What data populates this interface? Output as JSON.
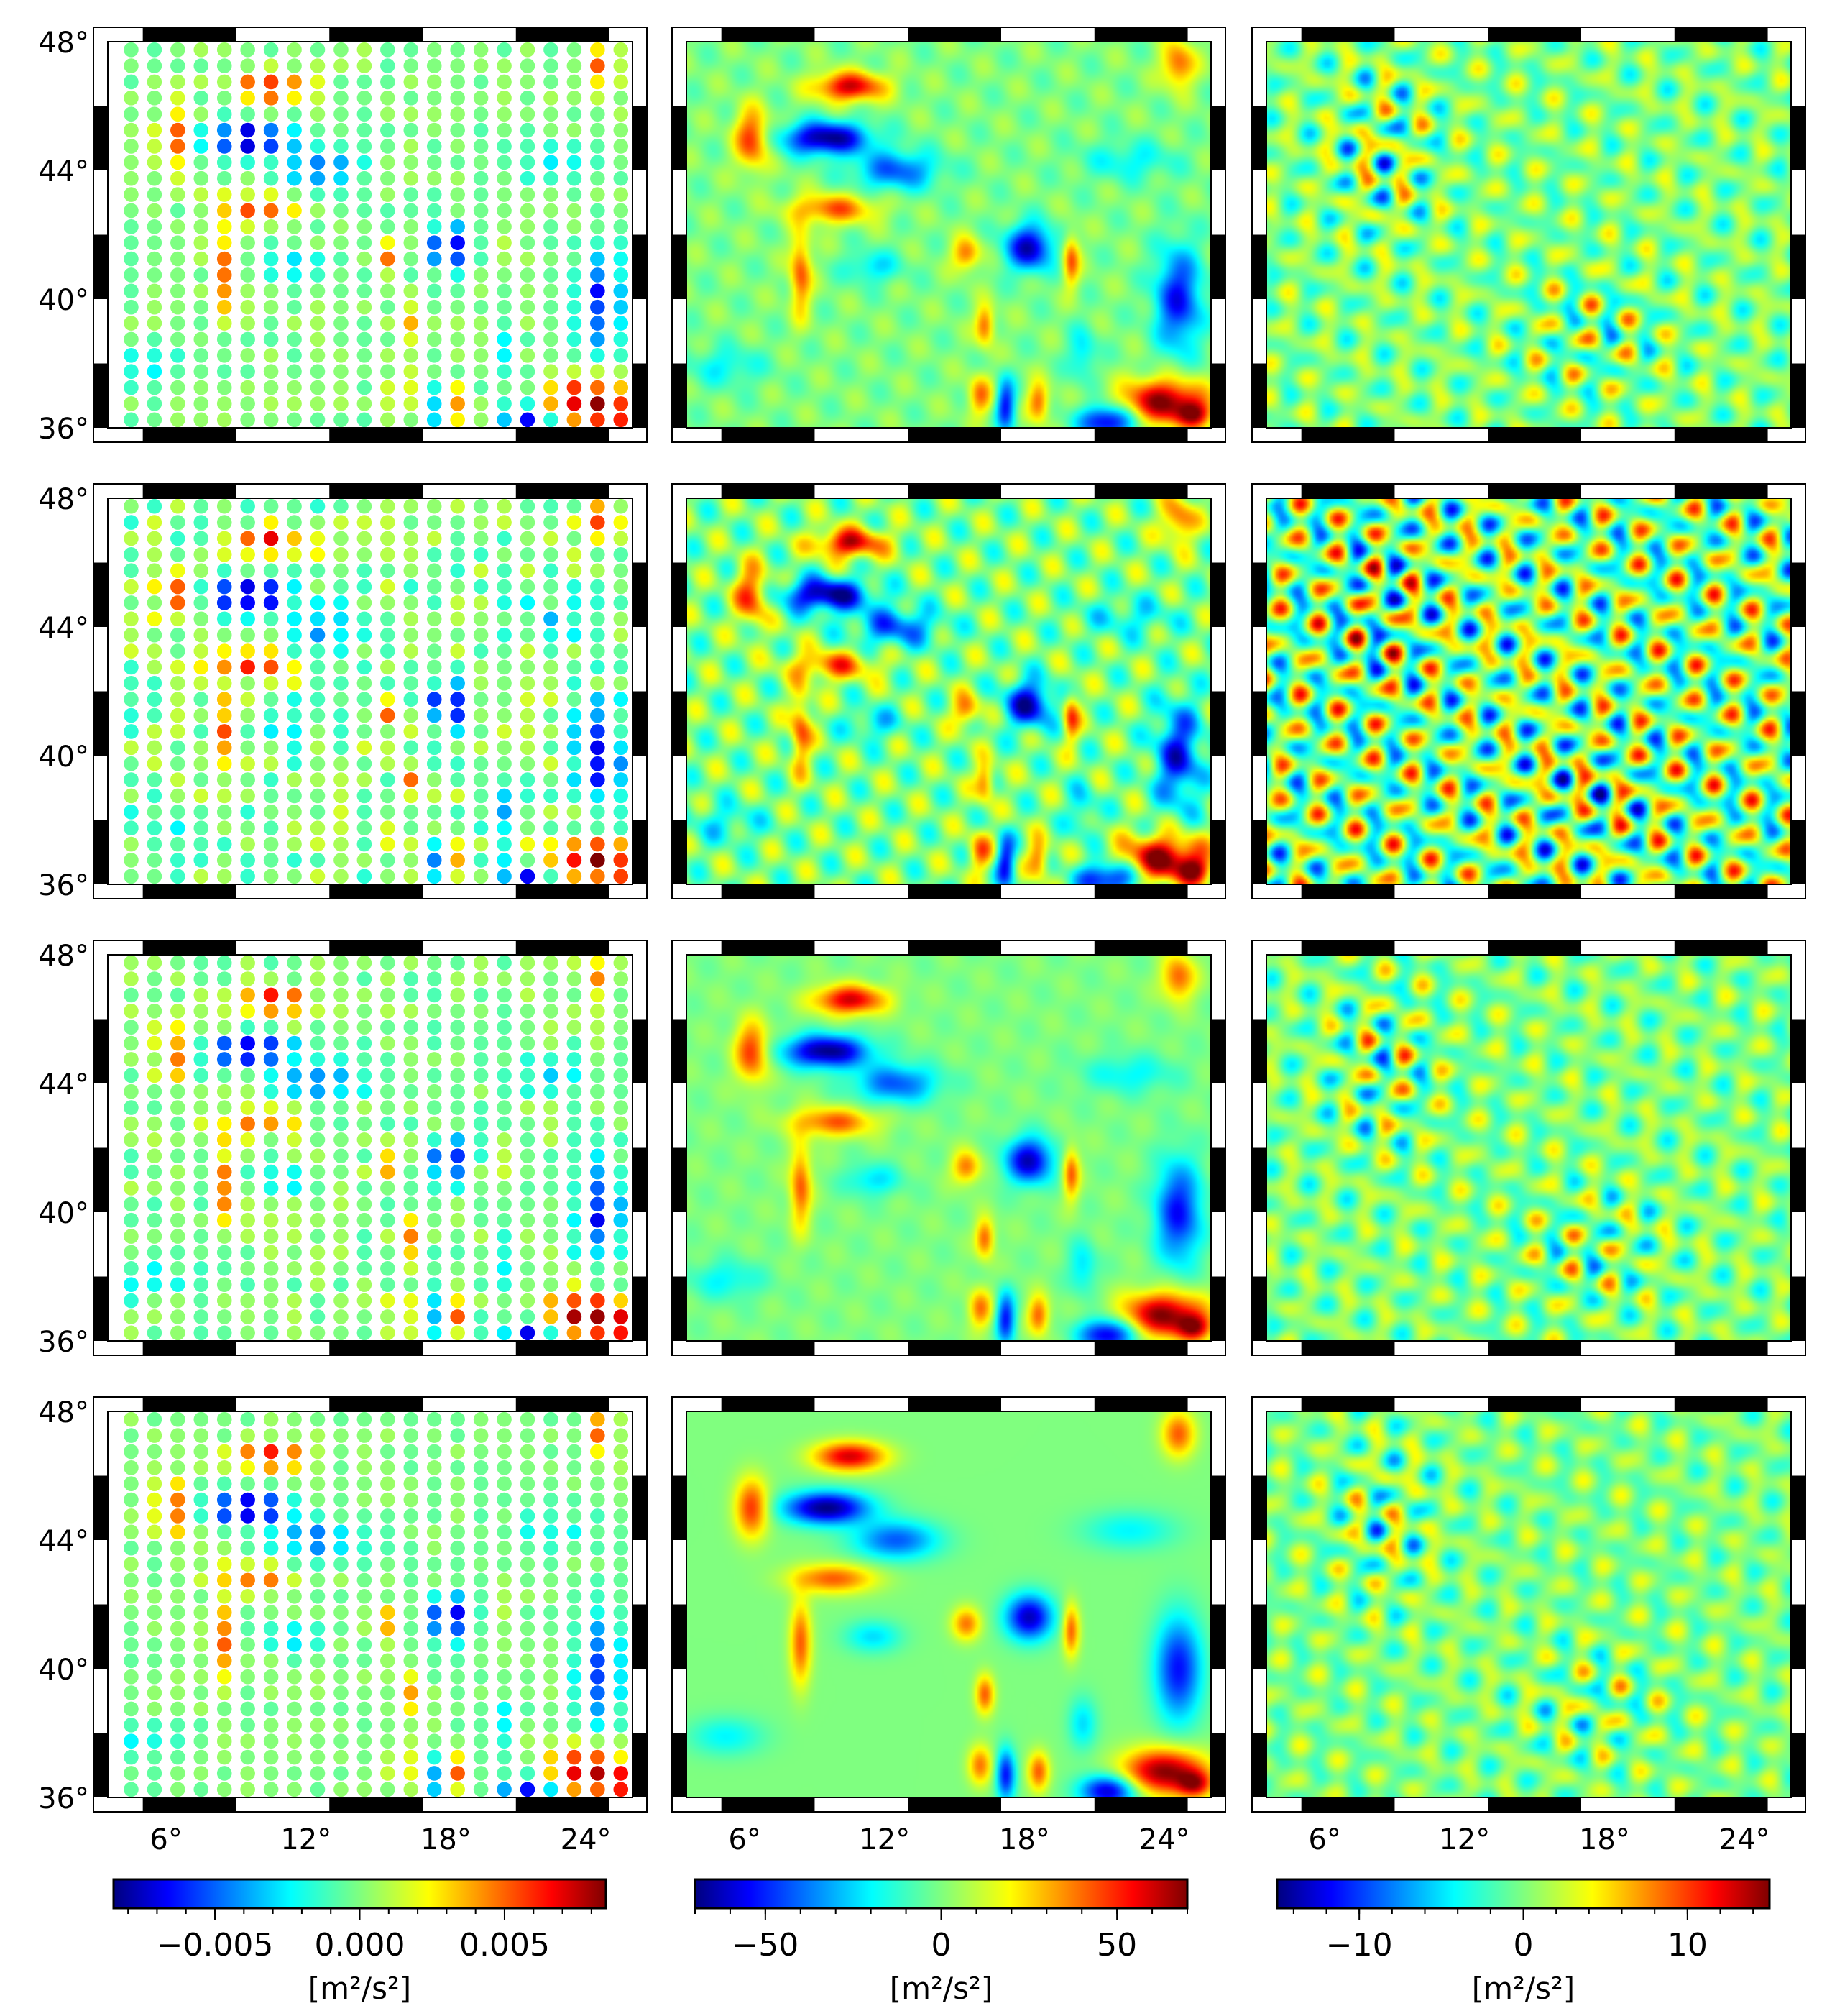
{
  "figure": {
    "columns": [
      "observed-points",
      "smoothed-field",
      "residual-field"
    ]
  },
  "chart_data": {
    "type": "heatmap",
    "grid": "4 rows x 3 columns of map panels",
    "x_axis": {
      "ticks": [
        6,
        12,
        18,
        24
      ],
      "tick_labels": [
        "6°",
        "12°",
        "18°",
        "24°"
      ],
      "range": [
        3.5,
        26.0
      ]
    },
    "y_axis": {
      "ticks": [
        36,
        40,
        44,
        48
      ],
      "tick_labels": [
        "36°",
        "40°",
        "44°",
        "48°"
      ],
      "range": [
        36,
        48
      ]
    },
    "frame_style": "alternating black and white map border",
    "colormap": "jet",
    "colorbars": [
      {
        "column": 1,
        "range": [
          -0.0085,
          0.0085
        ],
        "ticks": [
          -0.005,
          0,
          0.005
        ],
        "tick_labels": [
          "−0.005",
          "0.000",
          "0.005"
        ],
        "unit": "[m²/s²]"
      },
      {
        "column": 2,
        "range": [
          -70,
          70
        ],
        "ticks": [
          -50,
          0,
          50
        ],
        "tick_labels": [
          "−50",
          "0",
          "50"
        ],
        "unit": "[m²/s²]"
      },
      {
        "column": 3,
        "range": [
          -15,
          15
        ],
        "ticks": [
          -10,
          0,
          10
        ],
        "tick_labels": [
          "−10",
          "0",
          "10"
        ],
        "unit": "[m²/s²]"
      }
    ],
    "point_grid": {
      "lon_start": 4.5,
      "lon_step": 1.0,
      "lat_start": 36.25,
      "lat_step": 0.5
    },
    "anomalies": [
      {
        "lon": 10.5,
        "lat": 46.6,
        "sigma_lon": 1.5,
        "sigma_lat": 0.45,
        "amp": 0.8
      },
      {
        "lon": 6.3,
        "lat": 45.0,
        "sigma_lon": 0.7,
        "sigma_lat": 0.9,
        "amp": 0.65
      },
      {
        "lon": 9.5,
        "lat": 45.0,
        "sigma_lon": 1.8,
        "sigma_lat": 0.5,
        "amp": -0.95
      },
      {
        "lon": 12.5,
        "lat": 44.0,
        "sigma_lon": 1.8,
        "sigma_lat": 0.6,
        "amp": -0.55
      },
      {
        "lon": 9.8,
        "lat": 42.8,
        "sigma_lon": 1.8,
        "sigma_lat": 0.45,
        "amp": 0.55
      },
      {
        "lon": 8.4,
        "lat": 40.8,
        "sigma_lon": 0.45,
        "sigma_lat": 1.3,
        "amp": 0.55
      },
      {
        "lon": 11.5,
        "lat": 41.0,
        "sigma_lon": 1.2,
        "sigma_lat": 0.5,
        "amp": -0.3
      },
      {
        "lon": 18.2,
        "lat": 41.6,
        "sigma_lon": 1.0,
        "sigma_lat": 0.7,
        "amp": -0.85
      },
      {
        "lon": 15.5,
        "lat": 41.4,
        "sigma_lon": 0.6,
        "sigma_lat": 0.5,
        "amp": 0.5
      },
      {
        "lon": 20.0,
        "lat": 41.2,
        "sigma_lon": 0.35,
        "sigma_lat": 0.8,
        "amp": 0.55
      },
      {
        "lon": 16.3,
        "lat": 39.2,
        "sigma_lon": 0.4,
        "sigma_lat": 0.6,
        "amp": 0.55
      },
      {
        "lon": 24.6,
        "lat": 40.0,
        "sigma_lon": 1.0,
        "sigma_lat": 1.6,
        "amp": -0.7
      },
      {
        "lon": 24.6,
        "lat": 47.3,
        "sigma_lon": 0.7,
        "sigma_lat": 0.7,
        "amp": 0.55
      },
      {
        "lon": 24.0,
        "lat": 36.8,
        "sigma_lon": 1.8,
        "sigma_lat": 0.7,
        "amp": 0.95
      },
      {
        "lon": 25.3,
        "lat": 36.4,
        "sigma_lon": 0.7,
        "sigma_lat": 0.4,
        "amp": 0.6
      },
      {
        "lon": 21.6,
        "lat": 36.2,
        "sigma_lon": 1.2,
        "sigma_lat": 0.5,
        "amp": -0.85
      },
      {
        "lon": 17.2,
        "lat": 36.7,
        "sigma_lon": 0.4,
        "sigma_lat": 0.8,
        "amp": -0.7
      },
      {
        "lon": 18.6,
        "lat": 36.8,
        "sigma_lon": 0.45,
        "sigma_lat": 0.6,
        "amp": 0.55
      },
      {
        "lon": 16.1,
        "lat": 37.0,
        "sigma_lon": 0.5,
        "sigma_lat": 0.6,
        "amp": 0.5
      },
      {
        "lon": 5.2,
        "lat": 37.9,
        "sigma_lon": 1.6,
        "sigma_lat": 0.6,
        "amp": -0.25
      },
      {
        "lon": 22.5,
        "lat": 44.3,
        "sigma_lon": 2.0,
        "sigma_lat": 0.6,
        "amp": -0.25
      },
      {
        "lon": 20.5,
        "lat": 38.3,
        "sigma_lon": 0.6,
        "sigma_lat": 0.8,
        "amp": -0.3
      }
    ],
    "rows": [
      {
        "row": 1,
        "point_noise": 0.08,
        "smooth_ripple": 0.1,
        "residual_amplitude": 0.75,
        "residual_bias": 0.0
      },
      {
        "row": 2,
        "point_noise": 0.16,
        "smooth_ripple": 0.25,
        "residual_amplitude": 1.15,
        "residual_bias": 0.55
      },
      {
        "row": 3,
        "point_noise": 0.1,
        "smooth_ripple": 0.05,
        "residual_amplitude": 0.72,
        "residual_bias": 0.0
      },
      {
        "row": 4,
        "point_noise": 0.06,
        "smooth_ripple": 0.0,
        "residual_amplitude": 0.62,
        "residual_bias": 0.0
      }
    ]
  }
}
